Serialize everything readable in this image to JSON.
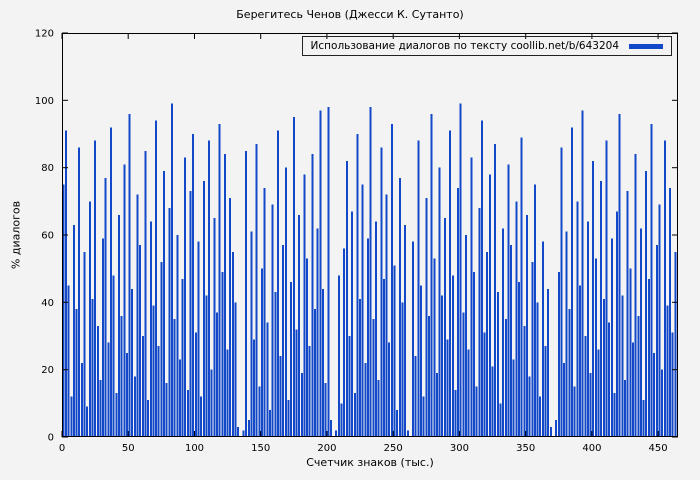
{
  "chart_data": {
    "type": "bar",
    "title": "Берегитесь Ченов (Джесси К. Сутанто)",
    "xlabel": "Счетчик знаков (тыс.)",
    "ylabel": "% диалогов",
    "legend": "Использование диалогов по тексту coollib.net/b/643204",
    "xlim": [
      0,
      465
    ],
    "ylim": [
      0,
      120
    ],
    "xticks": [
      0,
      50,
      100,
      150,
      200,
      250,
      300,
      350,
      400,
      450
    ],
    "yticks": [
      0,
      20,
      40,
      60,
      80,
      100,
      120
    ],
    "grid": false,
    "legend_position": "top-right-inside",
    "bar_color": "#1348c8",
    "x_start": 1,
    "x_step": 2,
    "values": [
      75,
      91,
      45,
      12,
      63,
      38,
      86,
      22,
      55,
      9,
      70,
      41,
      88,
      33,
      17,
      59,
      77,
      28,
      92,
      48,
      13,
      66,
      36,
      81,
      25,
      96,
      44,
      18,
      72,
      57,
      30,
      85,
      11,
      64,
      39,
      94,
      27,
      52,
      79,
      16,
      68,
      99,
      35,
      60,
      23,
      47,
      83,
      14,
      73,
      90,
      31,
      58,
      12,
      76,
      42,
      88,
      20,
      65,
      37,
      93,
      49,
      84,
      26,
      71,
      55,
      40,
      3,
      0,
      2,
      85,
      5,
      61,
      29,
      87,
      15,
      50,
      74,
      34,
      8,
      69,
      43,
      91,
      24,
      57,
      80,
      11,
      46,
      95,
      32,
      66,
      19,
      78,
      53,
      27,
      84,
      38,
      62,
      97,
      44,
      16,
      98,
      5,
      0,
      2,
      48,
      10,
      56,
      82,
      30,
      67,
      13,
      90,
      41,
      75,
      22,
      59,
      98,
      35,
      64,
      17,
      86,
      47,
      72,
      28,
      93,
      51,
      8,
      77,
      40,
      63,
      2,
      0,
      58,
      24,
      88,
      45,
      12,
      71,
      36,
      96,
      53,
      19,
      80,
      42,
      65,
      29,
      91,
      48,
      14,
      74,
      99,
      37,
      60,
      26,
      83,
      49,
      15,
      68,
      94,
      31,
      55,
      78,
      21,
      87,
      43,
      10,
      62,
      35,
      81,
      57,
      23,
      70,
      46,
      89,
      33,
      66,
      18,
      52,
      75,
      40,
      12,
      58,
      27,
      44,
      3,
      0,
      5,
      49,
      86,
      22,
      61,
      38,
      92,
      15,
      70,
      45,
      97,
      30,
      64,
      19,
      82,
      53,
      26,
      76,
      41,
      88,
      34,
      59,
      13,
      67,
      96,
      42,
      17,
      73,
      50,
      28,
      84,
      36,
      62,
      11,
      79,
      47,
      93,
      25,
      57,
      69,
      20,
      88,
      39,
      74,
      31,
      55
    ]
  }
}
